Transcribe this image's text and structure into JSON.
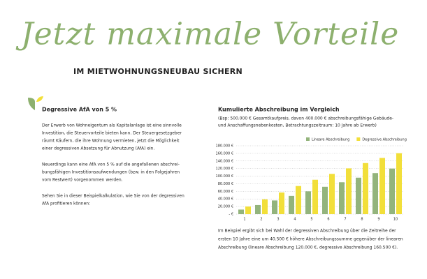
{
  "header": {
    "title": "Jetzt maximale Vorteile",
    "subtitle": "IM MIETWOHNUNGSNEUBAU SICHERN"
  },
  "left": {
    "heading": "Degressive AfA von 5 %",
    "paragraphs": [
      [
        "Der Erwerb von Wohneigentum als Kapitalanlage ist eine sinnvolle",
        "Investition, die Steuervorteile bieten kann. Der Steuergesetzgeber",
        "räumt Käufern, die ihre Wohnung vermieten, jetzt die Möglichkeit",
        "einer degressiven Absetzung für Abnutzung (AfA) ein."
      ],
      [
        "Neuerdings kann eine AfA von 5 % auf die angefallenen abschrei-",
        "bungsfähigen Investitionsaufwendungen (bzw. in den Folgejahren",
        "vom Restwert) vorgenommen werden."
      ],
      [
        "Sehen Sie in dieser Beispielkalkulation, wie Sie von der degressiven",
        "AfA profitieren können:"
      ]
    ]
  },
  "right": {
    "heading": "Kumulierte Abschreibung im Vergleich",
    "intro": [
      "(Bsp: 500.000 € Gesamtkaufpreis, davon 400.000 € abschreibungsfähige Gebäude-",
      "und Anschaffungsnebenkosten, Betrachtungszeitraum: 10 Jahre ab Erwerb)"
    ],
    "summary": [
      "Im Beispiel ergibt sich bei Wahl der degressiven Abschreibung über die Zeitreihe der",
      "ersten 10 Jahre eine um 40.500 € höhere Abschreibungssumme gegenüber der linearen",
      "Abschreibung (lineare Abschreibung 120.000 €, degressive Abschreibung 160.500 €)."
    ],
    "chart": {
      "type": "bar",
      "categories": [
        "1",
        "2",
        "3",
        "4",
        "5",
        "6",
        "7",
        "8",
        "9",
        "10"
      ],
      "series": [
        {
          "name": "Lineare Abschreibung",
          "color": "#93b47c",
          "values": [
            12000,
            24000,
            36000,
            48000,
            60000,
            72000,
            84000,
            96000,
            108000,
            120000
          ]
        },
        {
          "name": "Degressive Abschreibung",
          "color": "#f2df3a",
          "values": [
            20000,
            39000,
            57000,
            74000,
            90500,
            106000,
            120500,
            134500,
            148000,
            160500
          ]
        }
      ],
      "ylim": [
        0,
        180000
      ],
      "yticks": [
        {
          "value": 0,
          "label": "- €"
        },
        {
          "value": 20000,
          "label": "20.000 €"
        },
        {
          "value": 40000,
          "label": "40.000 €"
        },
        {
          "value": 60000,
          "label": "60.000 €"
        },
        {
          "value": 80000,
          "label": "80.000 €"
        },
        {
          "value": 100000,
          "label": "100.000 €"
        },
        {
          "value": 120000,
          "label": "120.000 €"
        },
        {
          "value": 140000,
          "label": "140.000 €"
        },
        {
          "value": 160000,
          "label": "160.000 €"
        },
        {
          "value": 180000,
          "label": "180.000 €"
        }
      ],
      "grid": true,
      "legend": "top-right"
    }
  }
}
